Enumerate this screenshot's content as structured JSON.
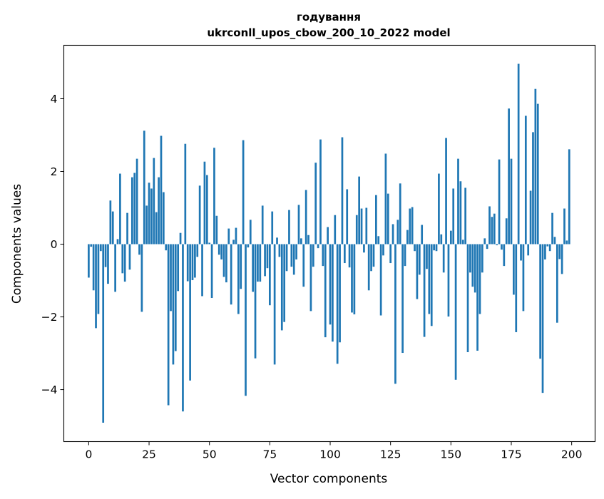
{
  "chart_data": {
    "type": "bar",
    "title": "годування",
    "subtitle": "ukrconll_upos_cbow_200_10_2022 model",
    "xlabel": "Vector components",
    "ylabel": "Components values",
    "xlim": [
      -10.3,
      209.7
    ],
    "ylim": [
      -5.43,
      5.47
    ],
    "xticks": [
      0,
      25,
      50,
      75,
      100,
      125,
      150,
      175,
      200
    ],
    "yticks": [
      -4,
      -2,
      0,
      2,
      4
    ],
    "ytick_labels": [
      "−4",
      "−2",
      "0",
      "2",
      "4"
    ],
    "grid": false,
    "bar_color": "#1f77b4",
    "values": [
      -0.92,
      -0.07,
      -1.27,
      -2.31,
      -1.92,
      -0.19,
      -4.91,
      -0.63,
      -1.09,
      1.2,
      0.9,
      -1.31,
      0.14,
      1.94,
      -0.8,
      -1.03,
      0.86,
      -0.7,
      1.84,
      1.96,
      2.35,
      -0.29,
      -1.86,
      3.12,
      1.06,
      1.69,
      1.53,
      2.37,
      0.88,
      1.84,
      2.98,
      1.43,
      -0.17,
      -4.43,
      -1.84,
      -3.31,
      -2.94,
      -1.29,
      0.31,
      -4.6,
      2.76,
      -1.02,
      -3.75,
      -0.99,
      -0.92,
      -0.35,
      1.61,
      -1.43,
      2.27,
      1.9,
      0.04,
      -1.48,
      2.65,
      0.78,
      -0.29,
      -0.42,
      -0.9,
      -1.05,
      0.43,
      -1.66,
      0.12,
      0.45,
      -1.92,
      -1.23,
      2.86,
      -4.17,
      -0.09,
      0.67,
      -1.31,
      -3.14,
      -1.03,
      -1.03,
      1.06,
      -0.88,
      -0.66,
      -1.68,
      0.9,
      -3.31,
      0.18,
      -0.35,
      -2.37,
      -2.14,
      -0.74,
      0.94,
      -0.62,
      -0.84,
      -0.42,
      1.08,
      0.16,
      -1.17,
      1.49,
      0.25,
      -1.84,
      -0.62,
      2.24,
      -0.11,
      2.88,
      -0.6,
      -2.56,
      0.47,
      -2.21,
      -2.68,
      0.8,
      -3.29,
      -2.7,
      2.94,
      -0.52,
      1.51,
      -0.64,
      -1.88,
      -1.93,
      0.8,
      1.86,
      0.98,
      -0.23,
      1.0,
      -1.27,
      -0.74,
      -0.62,
      1.35,
      0.22,
      -1.96,
      -0.31,
      2.49,
      1.39,
      -0.52,
      0.55,
      -3.84,
      0.67,
      1.67,
      -2.99,
      -0.6,
      0.39,
      0.98,
      1.02,
      -0.19,
      -1.51,
      -0.84,
      0.53,
      -2.55,
      -0.68,
      -1.92,
      -2.25,
      -0.17,
      -0.19,
      1.94,
      0.27,
      -0.78,
      2.92,
      -1.99,
      0.37,
      1.53,
      -3.73,
      2.35,
      1.73,
      0.12,
      1.55,
      -2.97,
      -0.78,
      -1.17,
      -1.33,
      -2.93,
      -1.92,
      -0.78,
      0.16,
      -0.13,
      1.04,
      0.75,
      0.84,
      -0.03,
      2.33,
      -0.15,
      -0.6,
      0.71,
      3.73,
      2.35,
      -1.39,
      -2.42,
      4.96,
      -0.45,
      -1.84,
      3.53,
      -0.31,
      1.47,
      3.08,
      4.27,
      3.86,
      -3.15,
      -4.09,
      -0.42,
      -0.06,
      -0.19,
      0.86,
      0.2,
      -2.16,
      -0.41,
      -0.82,
      0.98,
      0.1,
      2.61
    ]
  }
}
